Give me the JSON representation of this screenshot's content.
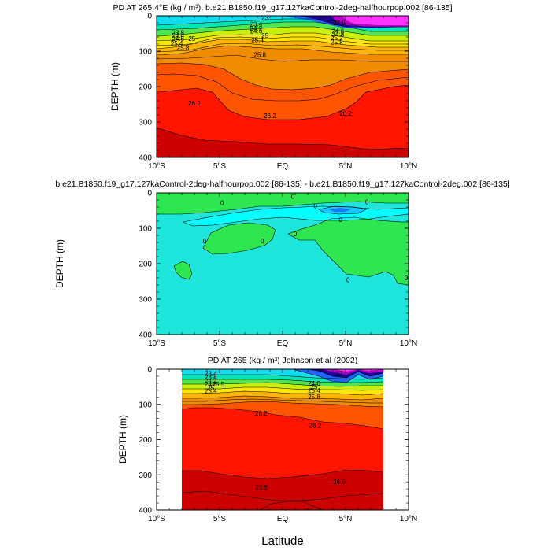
{
  "figure": {
    "xlabel": "Latitude",
    "background": "#ffffff"
  },
  "chart_data": [
    {
      "type": "heatmap",
      "title": "PD AT 265.4°E (kg / m³), b.e21.B1850.f19_g17.127kaControl-2deg-halfhourpop.002 [86-135]",
      "ylabel": "DEPTH (m)",
      "xlim": [
        -10,
        10
      ],
      "ylim": [
        0,
        400
      ],
      "y_inverted": true,
      "x_ticks": [
        "10°S",
        "5°S",
        "EQ",
        "5°N",
        "10°N"
      ],
      "x_tick_values": [
        -10,
        -5,
        0,
        5,
        10
      ],
      "y_ticks": [
        "0",
        "100",
        "200",
        "300",
        "400"
      ],
      "y_tick_values": [
        0,
        100,
        200,
        300,
        400
      ],
      "contour_labels": [
        {
          "text": "23",
          "x": -1.4,
          "y": 5
        },
        {
          "text": "23.8",
          "x": -8.3,
          "y": 48
        },
        {
          "text": "24.4",
          "x": -8.3,
          "y": 56
        },
        {
          "text": "24.6",
          "x": -8.3,
          "y": 64
        },
        {
          "text": "25",
          "x": -7.2,
          "y": 64
        },
        {
          "text": "25.4",
          "x": -8.4,
          "y": 78
        },
        {
          "text": "25.8",
          "x": -7.9,
          "y": 90
        },
        {
          "text": "23.4",
          "x": -2.1,
          "y": 23
        },
        {
          "text": "24.2",
          "x": -2.1,
          "y": 35
        },
        {
          "text": "24.6",
          "x": -2.1,
          "y": 43
        },
        {
          "text": "25",
          "x": -1.4,
          "y": 55
        },
        {
          "text": "25.4",
          "x": -2.0,
          "y": 68
        },
        {
          "text": "25.8",
          "x": -1.8,
          "y": 110
        },
        {
          "text": "27.8",
          "x": 4.5,
          "y": 20
        },
        {
          "text": "24.6",
          "x": 4.4,
          "y": 43
        },
        {
          "text": "24.8",
          "x": 4.4,
          "y": 52
        },
        {
          "text": "25.2",
          "x": 4.3,
          "y": 62
        },
        {
          "text": "25.8",
          "x": 4.3,
          "y": 74
        },
        {
          "text": "26.2",
          "x": -7.0,
          "y": 247
        },
        {
          "text": "26.2",
          "x": -1.0,
          "y": 282
        },
        {
          "text": "26.2",
          "x": 5.0,
          "y": 275
        }
      ]
    },
    {
      "type": "heatmap",
      "title": "b.e21.B1850.f19_g17.127kaControl-2deg-halfhourpop.002 [86-135] - b.e21.B1850.f19_g17.127kaControl-2deg.002 [86-135]",
      "ylabel": "DEPTH (m)",
      "xlim": [
        -10,
        10
      ],
      "ylim": [
        0,
        400
      ],
      "y_inverted": true,
      "x_ticks": [
        "10°S",
        "5°S",
        "EQ",
        "5°N",
        "10°N"
      ],
      "x_tick_values": [
        -10,
        -5,
        0,
        5,
        10
      ],
      "y_ticks": [
        "0",
        "100",
        "200",
        "300",
        "400"
      ],
      "y_tick_values": [
        0,
        100,
        200,
        300,
        400
      ],
      "contour_labels": [
        {
          "text": "0",
          "x": -4.8,
          "y": 28
        },
        {
          "text": "0",
          "x": 0.8,
          "y": 10
        },
        {
          "text": "0",
          "x": 2.6,
          "y": 37
        },
        {
          "text": "0",
          "x": 6.7,
          "y": 25
        },
        {
          "text": "0",
          "x": 4.6,
          "y": 75
        },
        {
          "text": "0",
          "x": -6.2,
          "y": 135
        },
        {
          "text": "0",
          "x": -1.6,
          "y": 135
        },
        {
          "text": "0",
          "x": 1.0,
          "y": 115
        },
        {
          "text": "0",
          "x": 5.2,
          "y": 245
        },
        {
          "text": "0",
          "x": 9.8,
          "y": 240
        }
      ]
    },
    {
      "type": "heatmap",
      "title": "PD AT 265 (kg / m³) Johnson et al (2002)",
      "ylabel": "DEPTH (m)",
      "xlim": [
        -10,
        10
      ],
      "ylim": [
        0,
        400
      ],
      "y_inverted": true,
      "data_x_range": [
        -8,
        8
      ],
      "x_ticks": [
        "10°S",
        "5°S",
        "EQ",
        "5°N",
        "10°N"
      ],
      "x_tick_values": [
        -10,
        -5,
        0,
        5,
        10
      ],
      "y_ticks": [
        "0",
        "100",
        "200",
        "300",
        "400"
      ],
      "y_tick_values": [
        0,
        100,
        200,
        300,
        400
      ],
      "contour_labels": [
        {
          "text": "23.4",
          "x": -5.7,
          "y": 12
        },
        {
          "text": "23.8",
          "x": -5.7,
          "y": 22
        },
        {
          "text": "24.2",
          "x": -5.7,
          "y": 32
        },
        {
          "text": "24.6",
          "x": -5.7,
          "y": 42
        },
        {
          "text": "25",
          "x": -5.7,
          "y": 52
        },
        {
          "text": "25.4",
          "x": -5.7,
          "y": 62
        },
        {
          "text": "25.5",
          "x": -5.1,
          "y": 42
        },
        {
          "text": "27",
          "x": 4.5,
          "y": 12
        },
        {
          "text": "24.6",
          "x": 2.5,
          "y": 40
        },
        {
          "text": "25",
          "x": 2.5,
          "y": 50
        },
        {
          "text": "25.4",
          "x": 2.5,
          "y": 60
        },
        {
          "text": "25.8",
          "x": 2.5,
          "y": 78
        },
        {
          "text": "26.2",
          "x": -1.7,
          "y": 125
        },
        {
          "text": "26.2",
          "x": 2.6,
          "y": 160
        },
        {
          "text": "26.6",
          "x": -1.7,
          "y": 335
        },
        {
          "text": "26.6",
          "x": 4.5,
          "y": 320
        }
      ]
    }
  ]
}
